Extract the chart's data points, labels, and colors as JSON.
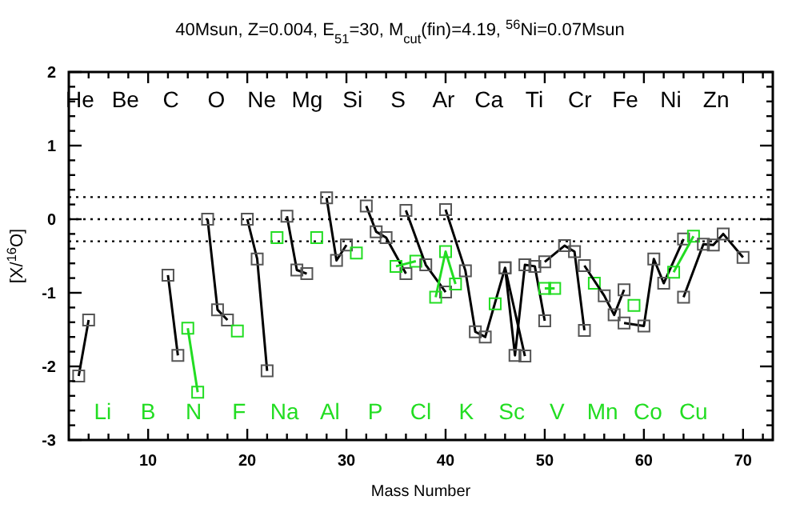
{
  "chart_data": {
    "type": "line",
    "title": "40Msun, Z=0.004, E$_{51}$=30, M$_{cut}$(fin)=4.19, $^{56}$Ni=0.07Msun",
    "xlabel": "Mass Number",
    "ylabel": "[X/$^{16}$O]",
    "xlim": [
      2,
      73
    ],
    "ylim": [
      -3,
      2
    ],
    "xticks": [
      {
        "value": 4,
        "label": null
      },
      {
        "value": 6,
        "label": null
      },
      {
        "value": 8,
        "label": null
      },
      10,
      {
        "value": 12,
        "label": null
      },
      {
        "value": 14,
        "label": null
      },
      {
        "value": 16,
        "label": null
      },
      {
        "value": 18,
        "label": null
      },
      20,
      {
        "value": 22,
        "label": null
      },
      {
        "value": 24,
        "label": null
      },
      {
        "value": 26,
        "label": null
      },
      {
        "value": 28,
        "label": null
      },
      30,
      {
        "value": 32,
        "label": null
      },
      {
        "value": 34,
        "label": null
      },
      {
        "value": 36,
        "label": null
      },
      {
        "value": 38,
        "label": null
      },
      40,
      {
        "value": 42,
        "label": null
      },
      {
        "value": 44,
        "label": null
      },
      {
        "value": 46,
        "label": null
      },
      {
        "value": 48,
        "label": null
      },
      50,
      {
        "value": 52,
        "label": null
      },
      {
        "value": 54,
        "label": null
      },
      {
        "value": 56,
        "label": null
      },
      {
        "value": 58,
        "label": null
      },
      60,
      {
        "value": 62,
        "label": null
      },
      {
        "value": 64,
        "label": null
      },
      {
        "value": 66,
        "label": null
      },
      {
        "value": 68,
        "label": null
      },
      70,
      {
        "value": 72,
        "label": null
      }
    ],
    "yticks": [
      -3,
      {
        "value": -2.8,
        "label": null
      },
      {
        "value": -2.6,
        "label": null
      },
      {
        "value": -2.4,
        "label": null
      },
      {
        "value": -2.2,
        "label": null
      },
      -2,
      {
        "value": -1.8,
        "label": null
      },
      {
        "value": -1.6,
        "label": null
      },
      {
        "value": -1.4,
        "label": null
      },
      {
        "value": -1.2,
        "label": null
      },
      -1,
      {
        "value": -0.8,
        "label": null
      },
      {
        "value": -0.6,
        "label": null
      },
      {
        "value": -0.4,
        "label": null
      },
      {
        "value": -0.2,
        "label": null
      },
      0,
      {
        "value": 0.2,
        "label": null
      },
      {
        "value": 0.4,
        "label": null
      },
      {
        "value": 0.6,
        "label": null
      },
      {
        "value": 0.8,
        "label": null
      },
      1,
      {
        "value": 1.2,
        "label": null
      },
      {
        "value": 1.4,
        "label": null
      },
      {
        "value": 1.6,
        "label": null
      },
      {
        "value": 1.8,
        "label": null
      },
      2
    ],
    "marker": "square",
    "line_style": "solid",
    "grid": false,
    "ref_lines": [
      {
        "axis": "y",
        "value": 0.3,
        "line_style": "dotted",
        "color": "#000000"
      },
      {
        "axis": "y",
        "value": 0,
        "line_style": "dotted",
        "color": "#000000"
      },
      {
        "axis": "y",
        "value": -0.3,
        "line_style": "dotted",
        "color": "#000000"
      }
    ],
    "series": [
      {
        "color": "#000000",
        "x": [
          3,
          4
        ],
        "values": [
          -2.13,
          -1.37
        ]
      },
      {
        "color": "#000000",
        "x": [
          12,
          13
        ],
        "values": [
          -0.76,
          -1.85
        ]
      },
      {
        "color": "#22dd22",
        "x": [
          14,
          15
        ],
        "values": [
          -1.48,
          -2.35
        ]
      },
      {
        "color": "#000000",
        "x": [
          16,
          17,
          18
        ],
        "values": [
          0,
          -1.23,
          -1.37
        ]
      },
      {
        "color": "#22dd22",
        "x": [
          19
        ],
        "values": [
          -1.52
        ]
      },
      {
        "color": "#000000",
        "x": [
          20,
          21,
          22
        ],
        "values": [
          0,
          -0.54,
          -2.06
        ]
      },
      {
        "color": "#22dd22",
        "x": [
          23
        ],
        "values": [
          -0.25
        ]
      },
      {
        "color": "#000000",
        "x": [
          24,
          25,
          26
        ],
        "values": [
          0.04,
          -0.69,
          -0.74
        ]
      },
      {
        "color": "#22dd22",
        "x": [
          27
        ],
        "values": [
          -0.25
        ]
      },
      {
        "color": "#000000",
        "x": [
          28,
          29,
          30
        ],
        "values": [
          0.29,
          -0.56,
          -0.35
        ]
      },
      {
        "color": "#22dd22",
        "x": [
          31
        ],
        "values": [
          -0.46
        ]
      },
      {
        "color": "#000000",
        "x": [
          32,
          33,
          34,
          36
        ],
        "values": [
          0.18,
          -0.17,
          -0.25,
          -0.74
        ]
      },
      {
        "color": "#22dd22",
        "x": [
          35,
          37
        ],
        "values": [
          -0.64,
          -0.57
        ]
      },
      {
        "color": "#000000",
        "x": [
          36,
          38,
          40
        ],
        "values": [
          0.12,
          -0.62,
          -0.99
        ]
      },
      {
        "color": "#22dd22",
        "x": [
          39,
          40,
          41
        ],
        "values": [
          -1.06,
          -0.44,
          -0.88
        ]
      },
      {
        "color": "#000000",
        "x": [
          40,
          42,
          43,
          44,
          46,
          48
        ],
        "values": [
          0.13,
          -0.7,
          -1.53,
          -1.6,
          -0.66,
          -1.86
        ]
      },
      {
        "color": "#22dd22",
        "x": [
          45
        ],
        "values": [
          -1.15
        ]
      },
      {
        "color": "#000000",
        "x": [
          46,
          47,
          48,
          49,
          50
        ],
        "values": [
          -0.66,
          -1.85,
          -0.62,
          -0.64,
          -1.38
        ]
      },
      {
        "color": "#22dd22",
        "x": [
          50,
          51
        ],
        "values": [
          -0.94,
          -0.94
        ]
      },
      {
        "color": "#000000",
        "x": [
          50,
          52,
          53,
          54
        ],
        "values": [
          -0.58,
          -0.36,
          -0.44,
          -1.51
        ]
      },
      {
        "color": "#22dd22",
        "x": [
          55
        ],
        "values": [
          -0.87
        ]
      },
      {
        "color": "#000000",
        "x": [
          54,
          56,
          57,
          58
        ],
        "values": [
          -0.63,
          -1.04,
          -1.3,
          -0.96
        ]
      },
      {
        "color": "#22dd22",
        "x": [
          59
        ],
        "values": [
          -1.17
        ]
      },
      {
        "color": "#000000",
        "x": [
          58,
          60,
          61,
          62,
          64
        ],
        "values": [
          -1.41,
          -1.45,
          -0.54,
          -0.87,
          -0.27
        ]
      },
      {
        "color": "#22dd22",
        "x": [
          63,
          65
        ],
        "values": [
          -0.72,
          -0.23
        ]
      },
      {
        "color": "#000000",
        "x": [
          64,
          66,
          67,
          68,
          70
        ],
        "values": [
          -1.06,
          -0.34,
          -0.35,
          -0.2,
          -0.52
        ]
      }
    ],
    "annotations": [
      "He",
      "Li",
      "Be",
      "B",
      "C",
      "N",
      "O",
      "F",
      "Ne",
      "Na",
      "Mg",
      "Al",
      "Si",
      "P",
      "S",
      "Cl",
      "Ar",
      "K",
      "Ca",
      "Sc",
      "Ti",
      "V",
      "Cr",
      "Mn",
      "Fe",
      "Co",
      "Ni",
      "Cu",
      "Zn"
    ]
  }
}
